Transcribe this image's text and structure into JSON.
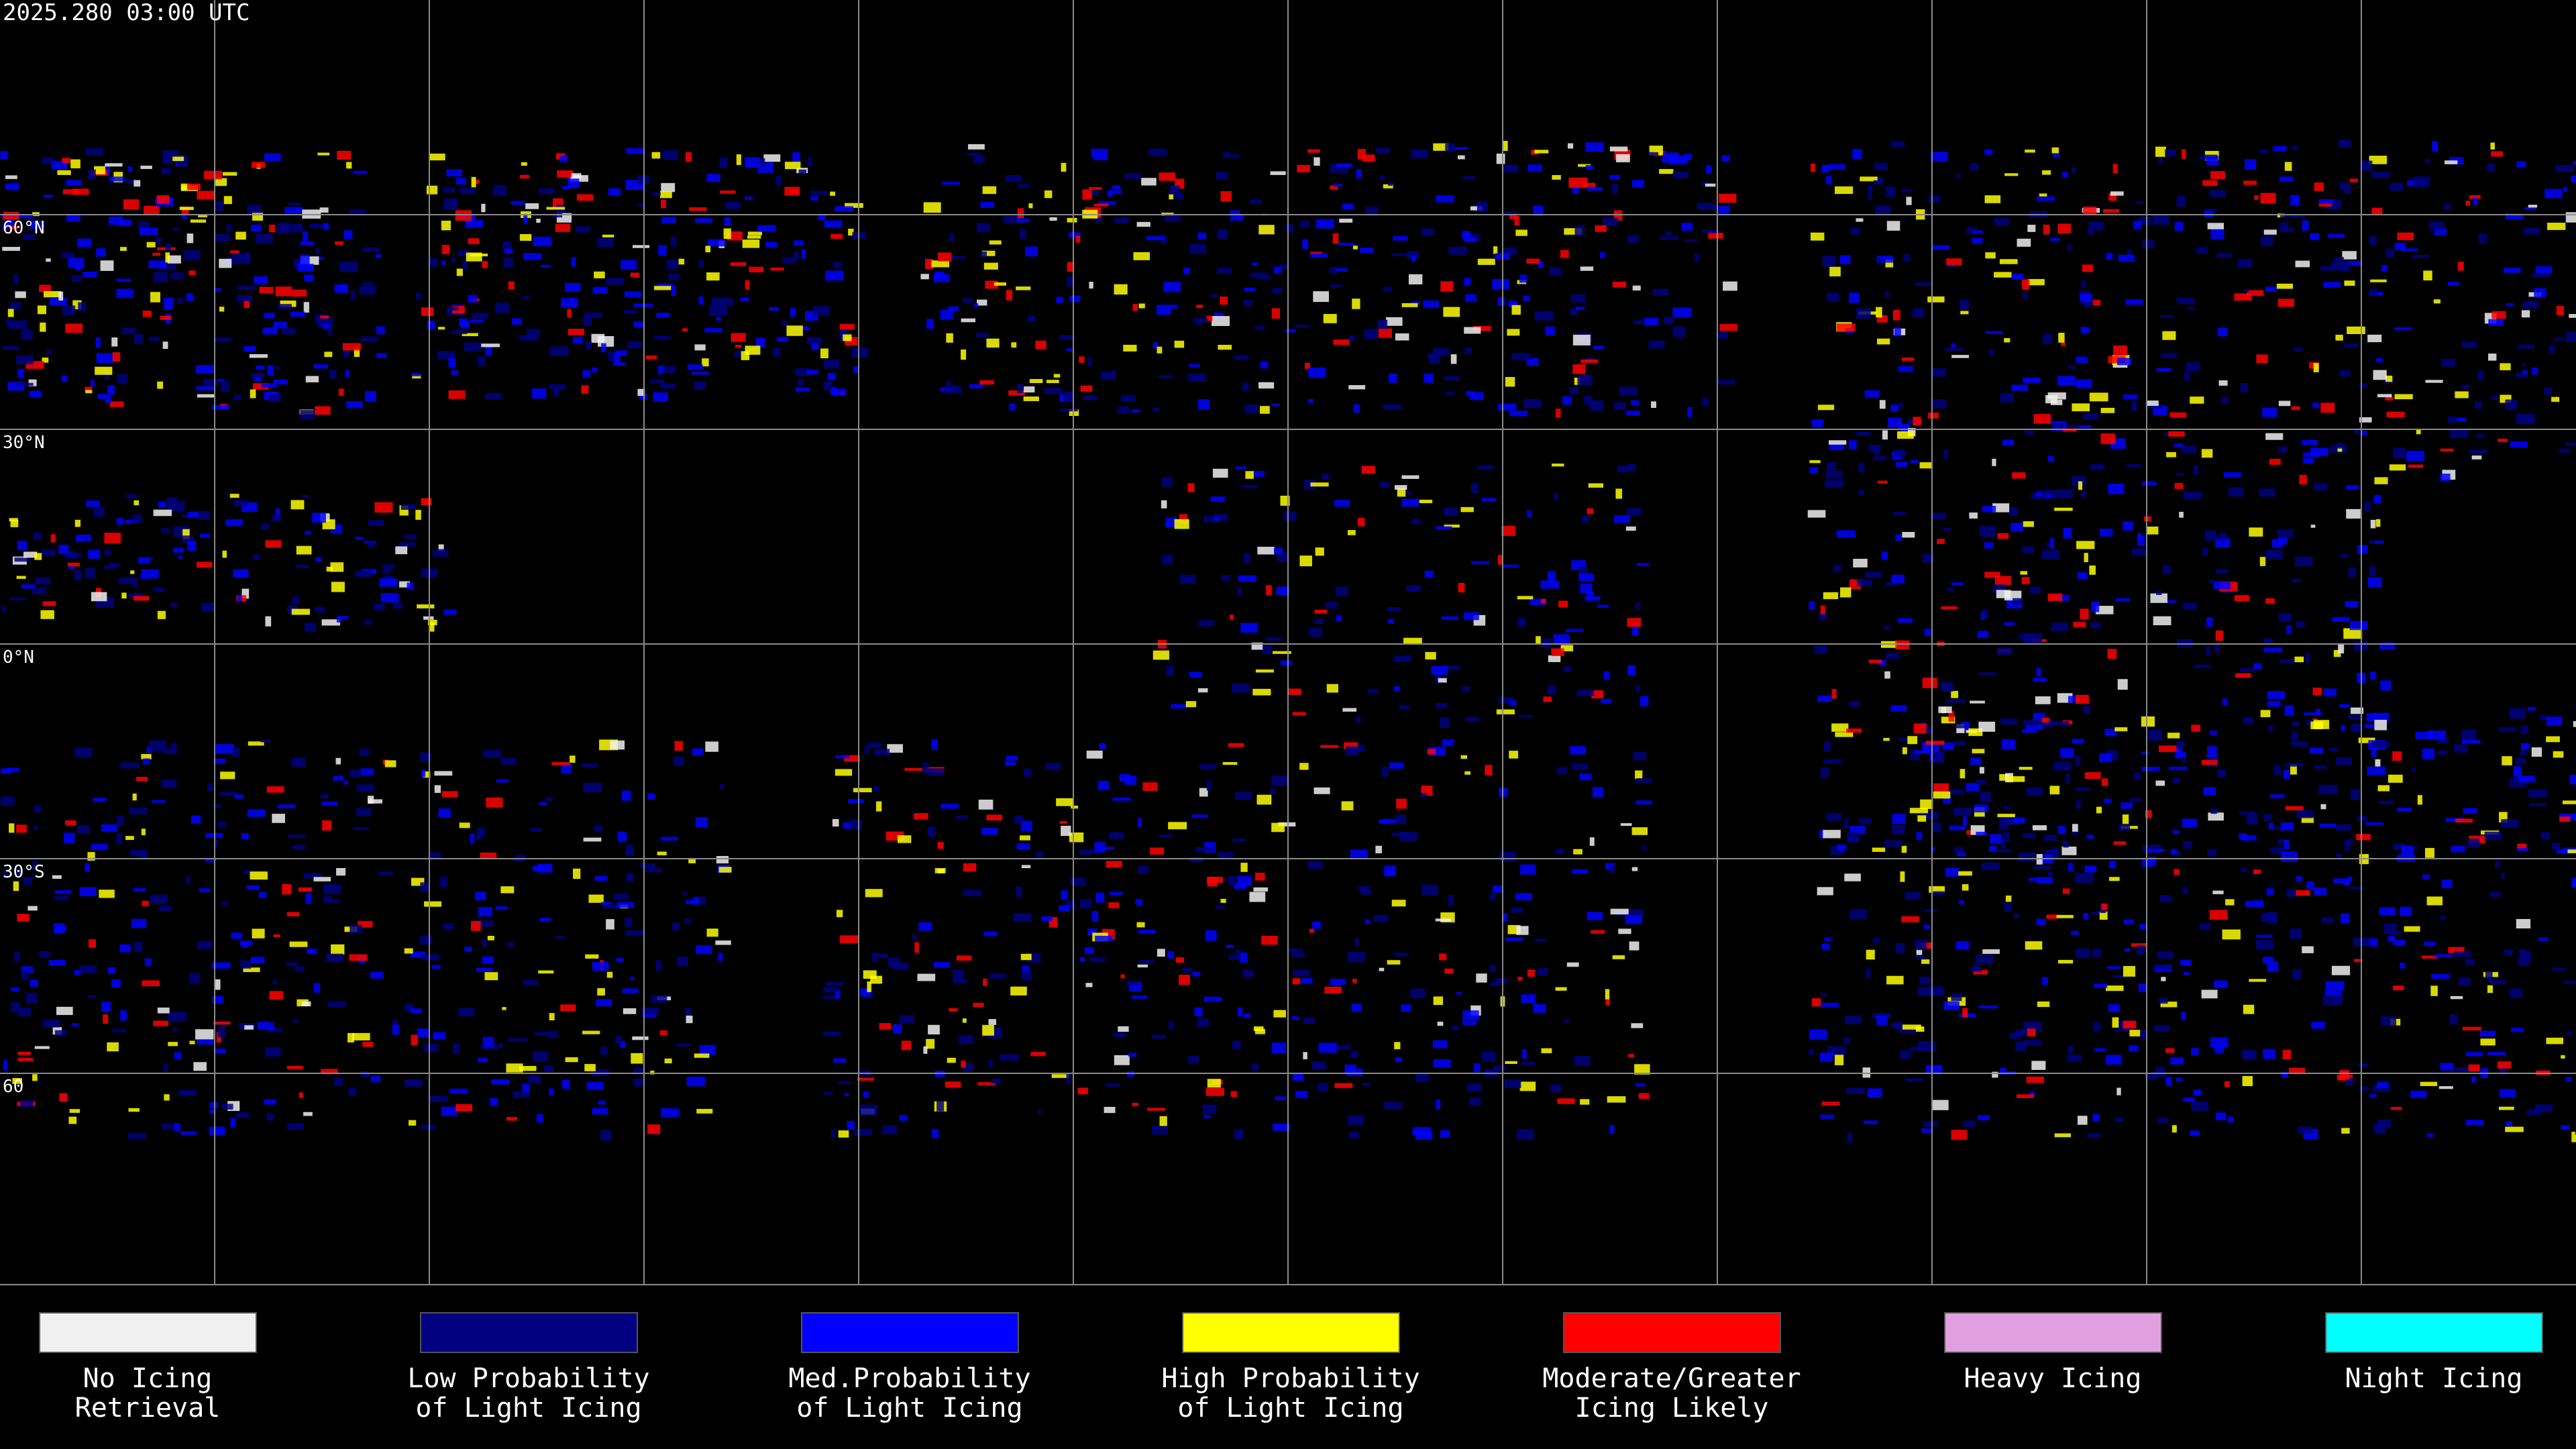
{
  "header": {
    "timestamp": "2025.280 03:00 UTC"
  },
  "map": {
    "latitude_labels": [
      "60°N",
      "30°N",
      "0°N",
      "30°S",
      "60"
    ]
  },
  "legend": [
    {
      "color": "#f0f0f0",
      "lines": [
        "No Icing",
        "Retrieval"
      ]
    },
    {
      "color": "#000080",
      "lines": [
        "Low Probability",
        "of Light Icing"
      ]
    },
    {
      "color": "#0000ff",
      "lines": [
        "Med.Probability",
        "of Light Icing"
      ]
    },
    {
      "color": "#ffff00",
      "lines": [
        "High Probability",
        "of Light Icing"
      ]
    },
    {
      "color": "#ff0000",
      "lines": [
        "Moderate/Greater",
        "Icing Likely"
      ]
    },
    {
      "color": "#e0a0e0",
      "lines": [
        "Heavy Icing"
      ]
    },
    {
      "color": "#00ffff",
      "lines": [
        "Night Icing"
      ]
    }
  ]
}
